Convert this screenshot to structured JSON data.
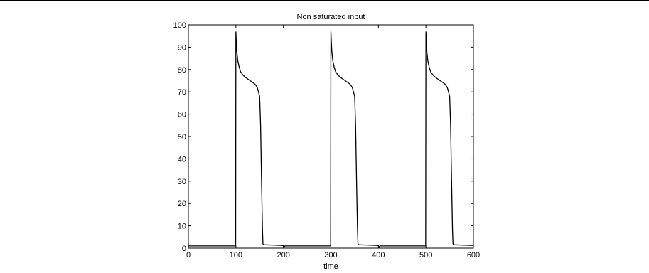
{
  "chart_data": {
    "type": "line",
    "title": "Non saturated input",
    "xlabel": "time",
    "ylabel": "",
    "xlim": [
      0,
      600
    ],
    "ylim": [
      0,
      100
    ],
    "xticks": [
      0,
      100,
      200,
      300,
      400,
      500,
      600
    ],
    "yticks": [
      0,
      10,
      20,
      30,
      40,
      50,
      60,
      70,
      80,
      90,
      100
    ],
    "grid": false,
    "line_color": "#000000",
    "series": [
      {
        "x": [
          0,
          99.5,
          100,
          101,
          102,
          104,
          107,
          110,
          115,
          120,
          130,
          140,
          145,
          150,
          152,
          154,
          156,
          157,
          158,
          160,
          200,
          201,
          202,
          203,
          210,
          299.5,
          300,
          301,
          302,
          304,
          307,
          310,
          315,
          320,
          330,
          340,
          345,
          350,
          352,
          354,
          356,
          357,
          358,
          360,
          400,
          401,
          402,
          403,
          410,
          499.5,
          500,
          501,
          502,
          504,
          507,
          510,
          515,
          520,
          530,
          540,
          545,
          550,
          552,
          554,
          556,
          557,
          558,
          560,
          600
        ],
        "y": [
          1,
          1,
          97,
          92,
          88,
          84,
          81,
          79,
          77.5,
          76.5,
          75,
          73.5,
          72,
          68,
          55,
          30,
          8,
          2,
          1.5,
          1.5,
          1.2,
          0.2,
          0.4,
          1,
          1,
          1,
          97,
          92,
          88,
          84,
          81,
          79,
          77.5,
          76.5,
          75,
          73.5,
          72,
          68,
          55,
          30,
          8,
          2,
          1.5,
          1.5,
          1.2,
          0.2,
          0.4,
          1,
          1,
          1,
          97,
          92,
          88,
          84,
          81,
          79,
          77.5,
          76.5,
          75,
          73.5,
          72,
          68,
          55,
          30,
          8,
          2,
          1.5,
          1.5,
          1.2
        ]
      }
    ]
  }
}
